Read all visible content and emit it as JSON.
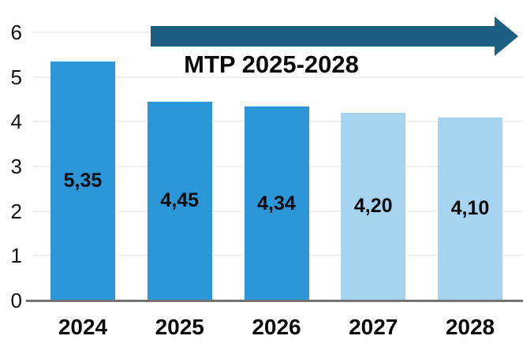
{
  "chart_data": {
    "type": "bar",
    "title": "",
    "categories": [
      "2024",
      "2025",
      "2026",
      "2027",
      "2028"
    ],
    "values": [
      5.35,
      4.45,
      4.34,
      4.2,
      4.1
    ],
    "value_labels": [
      "5,35",
      "4,45",
      "4,34",
      "4,20",
      "4,10"
    ],
    "yticks": [
      0,
      1,
      2,
      3,
      4,
      5,
      6
    ],
    "ylim": [
      0,
      6
    ],
    "xlabel": "",
    "ylabel": "",
    "grid": "horizontal",
    "legend": "none",
    "annotation": "MTP 2025-2028",
    "annotation_style": "arrow-right-over-2025-2028",
    "bar_colors": [
      "#2B97D9",
      "#2B97D9",
      "#2B97D9",
      "#A6D3F0",
      "#A6D3F0"
    ]
  },
  "colors": {
    "bar_primary": "#2B97D9",
    "bar_light": "#A6D3F0",
    "arrow": "#1D5F83",
    "axis_line": "#737373",
    "gridline": "#F0F0F0",
    "text": "#0a0a0a",
    "background": "#ffffff"
  }
}
